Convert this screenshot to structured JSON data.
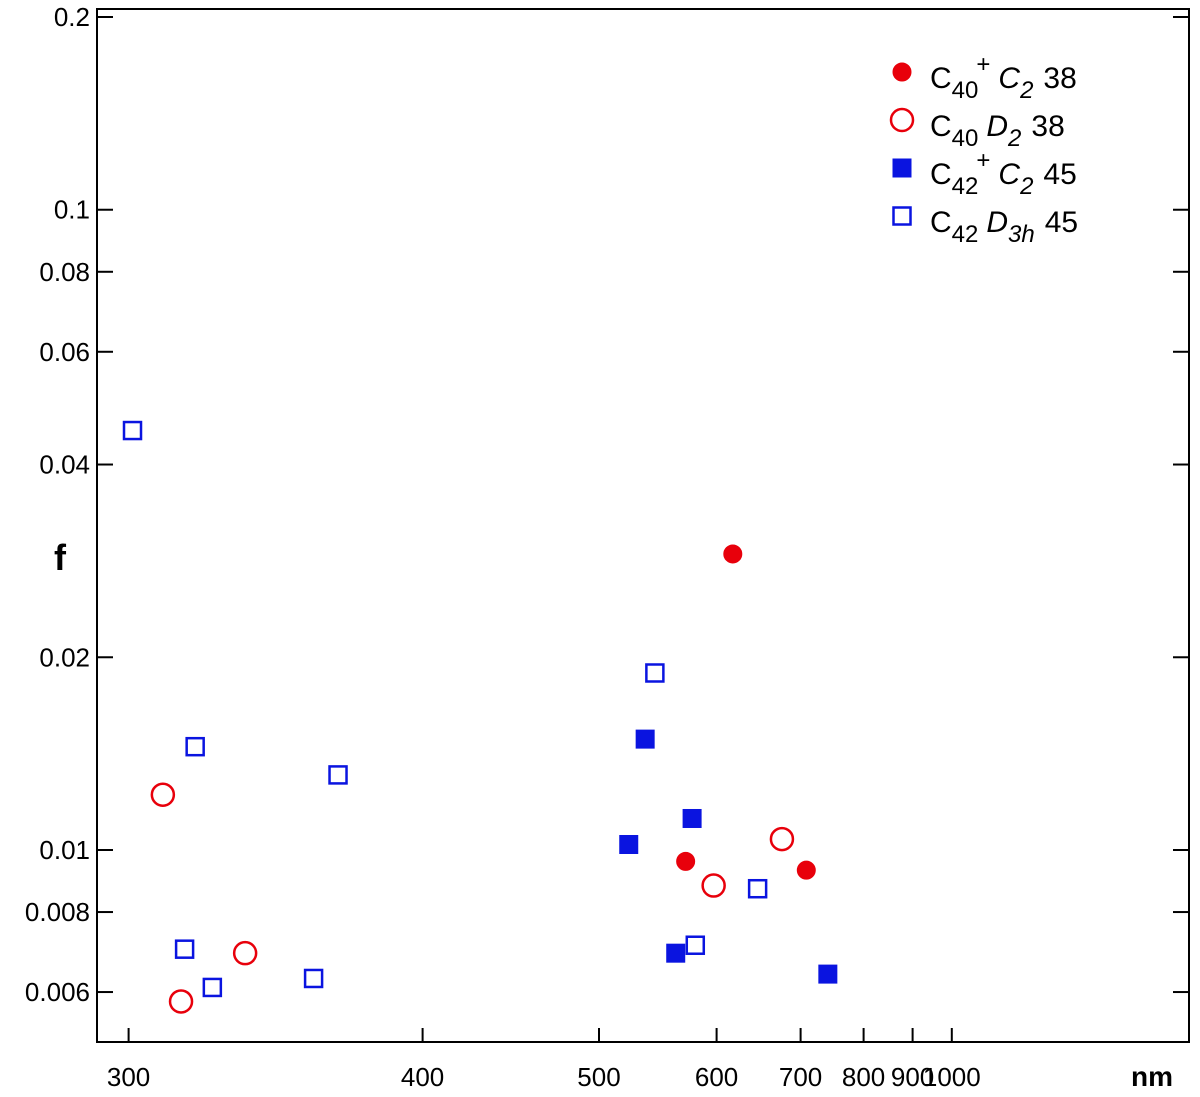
{
  "chart_data": {
    "type": "scatter",
    "xlabel": "nm",
    "ylabel": "f",
    "x_scale": "reciprocal",
    "y_scale": "log",
    "xlim": [
      285,
      1200
    ],
    "ylim": [
      0.0055,
      0.2
    ],
    "x_ticks": [
      300,
      400,
      500,
      600,
      700,
      800,
      900,
      1000
    ],
    "x_tick_labels": [
      "300",
      "400",
      "500",
      "600",
      "700",
      "800",
      "900",
      "1000"
    ],
    "y_ticks": [
      0.006,
      0.008,
      0.01,
      0.02,
      0.04,
      0.06,
      0.08,
      0.1,
      0.2
    ],
    "y_tick_labels": [
      "0.006",
      "0.008",
      "0.01",
      "0.02",
      "0.04",
      "0.06",
      "0.08",
      "0.1",
      "0.2"
    ],
    "grid": false,
    "legend_position": "top-right",
    "series": [
      {
        "name": "C40+ C2 38",
        "legend": {
          "base": "C",
          "sub": "40",
          "sup": "+",
          "sym": "C",
          "symsub": "2",
          "num": "38"
        },
        "marker": "circle-filled",
        "color": "#e8000b",
        "points": [
          [
            570,
            0.0096
          ],
          [
            617,
            0.029
          ],
          [
            708,
            0.0093
          ]
        ]
      },
      {
        "name": "C40 D2 38",
        "legend": {
          "base": "C",
          "sub": "40",
          "sup": "",
          "sym": "D",
          "symsub": "2",
          "num": "38"
        },
        "marker": "circle-open",
        "color": "#e8000b",
        "points": [
          [
            309,
            0.0122
          ],
          [
            314,
            0.0058
          ],
          [
            333,
            0.0069
          ],
          [
            597,
            0.0088
          ],
          [
            675,
            0.0104
          ]
        ]
      },
      {
        "name": "C42+ C2 45",
        "legend": {
          "base": "C",
          "sub": "42",
          "sup": "+",
          "sym": "C",
          "symsub": "2",
          "num": "45"
        },
        "marker": "square-filled",
        "color": "#0a14e0",
        "points": [
          [
            522,
            0.0102
          ],
          [
            535,
            0.0149
          ],
          [
            561,
            0.0069
          ],
          [
            576,
            0.0112
          ],
          [
            740,
            0.0064
          ]
        ]
      },
      {
        "name": "C42 D3h 45",
        "legend": {
          "base": "C",
          "sub": "42",
          "sup": "",
          "sym": "D",
          "symsub": "3h",
          "num": "45"
        },
        "marker": "square-open",
        "color": "#0a14e0",
        "points": [
          [
            301,
            0.0452
          ],
          [
            315,
            0.007
          ],
          [
            318,
            0.0145
          ],
          [
            323,
            0.0061
          ],
          [
            356,
            0.0063
          ],
          [
            365,
            0.0131
          ],
          [
            543,
            0.0189
          ],
          [
            579,
            0.0071
          ],
          [
            645,
            0.0087
          ]
        ]
      }
    ]
  }
}
